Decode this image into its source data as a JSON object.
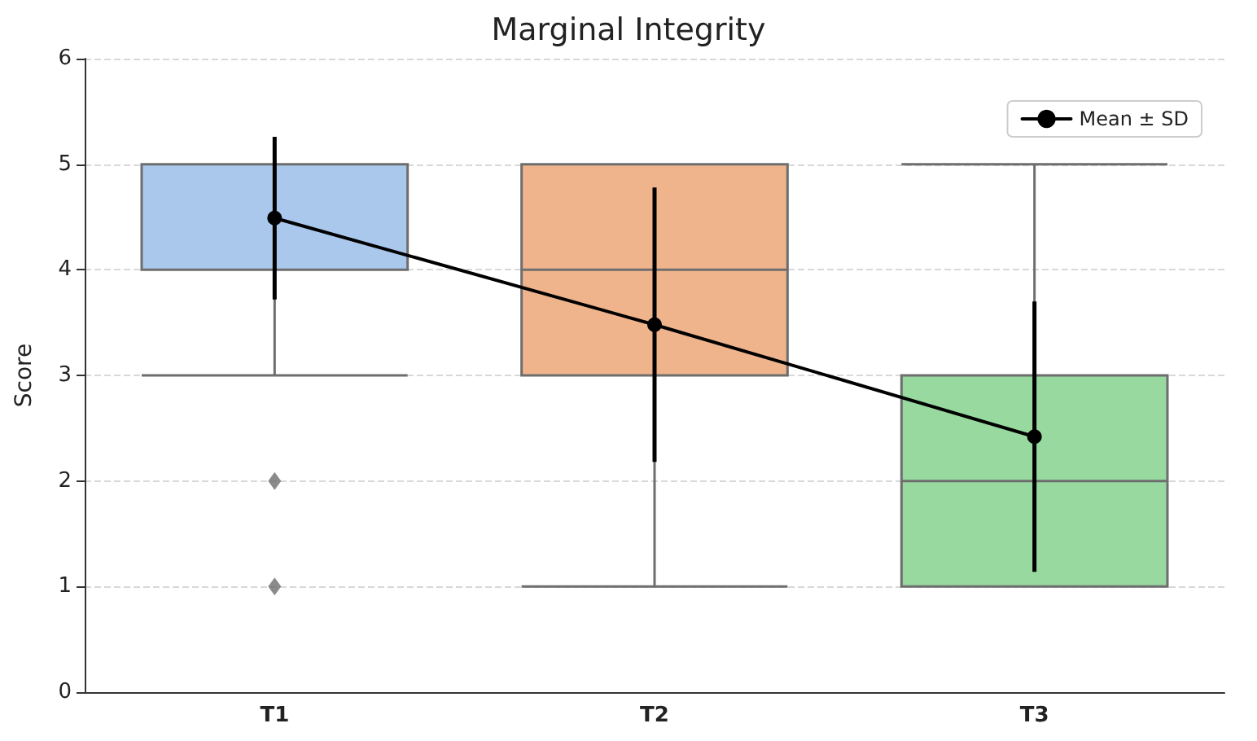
{
  "chart_data": {
    "type": "box",
    "title": "Marginal Integrity",
    "ylabel": "Score",
    "categories": [
      "T1",
      "T2",
      "T3"
    ],
    "ylim": [
      0,
      6
    ],
    "yticks": [
      0,
      1,
      2,
      3,
      4,
      5,
      6
    ],
    "grid": "y",
    "legend": "top right",
    "series": [
      {
        "colors": [
          "#a9c8ec",
          "#f0b48d",
          "#98d9a0"
        ],
        "boxes": [
          {
            "low": 3,
            "q1": 4,
            "median": 5,
            "q3": 5,
            "high": 5,
            "outliers": [
              2,
              1
            ]
          },
          {
            "low": 1,
            "q1": 3,
            "median": 4,
            "q3": 5,
            "high": 5
          },
          {
            "low": 1,
            "q1": 1,
            "median": 2,
            "q3": 3,
            "high": 5
          }
        ]
      },
      {
        "type": "line",
        "name": "Mean ± SD",
        "color": "#000000",
        "marker": "circle",
        "values": [
          4.49,
          3.48,
          2.42
        ],
        "errors": [
          0.77,
          1.3,
          1.28
        ]
      }
    ]
  }
}
